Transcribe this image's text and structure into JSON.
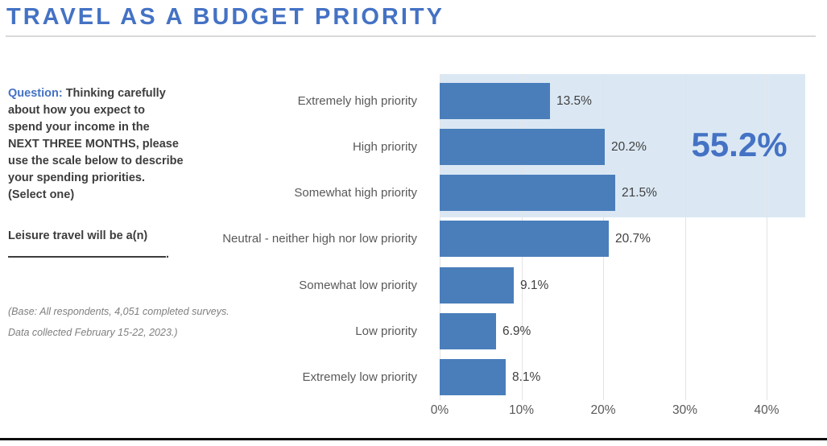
{
  "page": {
    "title": "TRAVEL AS A BUDGET PRIORITY"
  },
  "sidebar": {
    "question_label": "Question:",
    "question_text": " Thinking carefully\nabout how you expect to\nspend your income in the\nNEXT THREE MONTHS, please\nuse the scale below to describe\nyour spending priorities.\n(Select one)",
    "fill_in_sentence": "Leisure travel will be a(n)",
    "fill_in_suffix": ".",
    "base_note": "(Base: All respondents, 4,051 completed surveys.\nData collected February 15-22, 2023.)"
  },
  "chart_data": {
    "type": "bar",
    "orientation": "horizontal",
    "title": "TRAVEL AS A BUDGET PRIORITY",
    "categories": [
      "Extremely high priority",
      "High priority",
      "Somewhat high priority",
      "Neutral - neither high nor low priority",
      "Somewhat low priority",
      "Low priority",
      "Extremely low priority"
    ],
    "values": [
      13.5,
      20.2,
      21.5,
      20.7,
      9.1,
      6.9,
      8.1
    ],
    "value_labels": [
      "13.5%",
      "20.2%",
      "21.5%",
      "20.7%",
      "9.1%",
      "6.9%",
      "8.1%"
    ],
    "x_ticks": [
      "0%",
      "10%",
      "20%",
      "30%",
      "40%"
    ],
    "xlim": [
      0,
      45
    ],
    "grid": true,
    "legend": "none",
    "bar_color": "#4A7EBB",
    "highlight": {
      "label": "55.2%",
      "color": "#DBE8F4",
      "covers_categories": [
        "Extremely high priority",
        "High priority",
        "Somewhat high priority"
      ]
    }
  },
  "colors": {
    "accent_blue": "#4472C4",
    "bar_blue": "#4A7EBB",
    "highlight_blue": "#DBE8F4",
    "label_gray": "#595959",
    "value_dark": "#404040",
    "note_gray": "#7F7F7F",
    "rule_gray": "#D9D9D9"
  }
}
